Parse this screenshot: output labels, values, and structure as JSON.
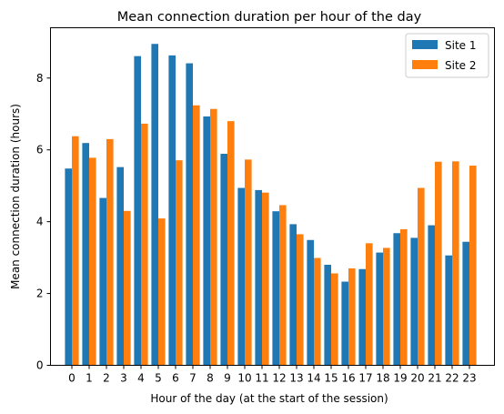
{
  "chart_data": {
    "type": "bar",
    "title": "Mean connection duration per hour of the day",
    "xlabel": "Hour of the day (at the start of the session)",
    "ylabel": "Mean connection duration (hours)",
    "categories": [
      "0",
      "1",
      "2",
      "3",
      "4",
      "5",
      "6",
      "7",
      "8",
      "9",
      "10",
      "11",
      "12",
      "13",
      "14",
      "15",
      "16",
      "17",
      "18",
      "19",
      "20",
      "21",
      "22",
      "23"
    ],
    "series": [
      {
        "name": "Site 1",
        "color": "#1f77b4",
        "values": [
          5.48,
          6.19,
          4.66,
          5.52,
          8.61,
          8.95,
          8.63,
          8.41,
          6.93,
          5.89,
          4.94,
          4.88,
          4.29,
          3.93,
          3.49,
          2.8,
          2.33,
          2.68,
          3.14,
          3.68,
          3.55,
          3.9,
          3.06,
          3.44
        ]
      },
      {
        "name": "Site 2",
        "color": "#ff7f0e",
        "values": [
          6.38,
          5.78,
          6.3,
          4.3,
          6.73,
          4.09,
          5.71,
          7.24,
          7.14,
          6.8,
          5.73,
          4.81,
          4.46,
          3.65,
          2.99,
          2.56,
          2.7,
          3.4,
          3.27,
          3.79,
          4.94,
          5.67,
          5.68,
          5.56
        ]
      }
    ],
    "yticks": [
      "0",
      "2",
      "4",
      "6",
      "8"
    ],
    "ylim": [
      0,
      9.4
    ],
    "grid": false,
    "legend_position": "top-right"
  }
}
